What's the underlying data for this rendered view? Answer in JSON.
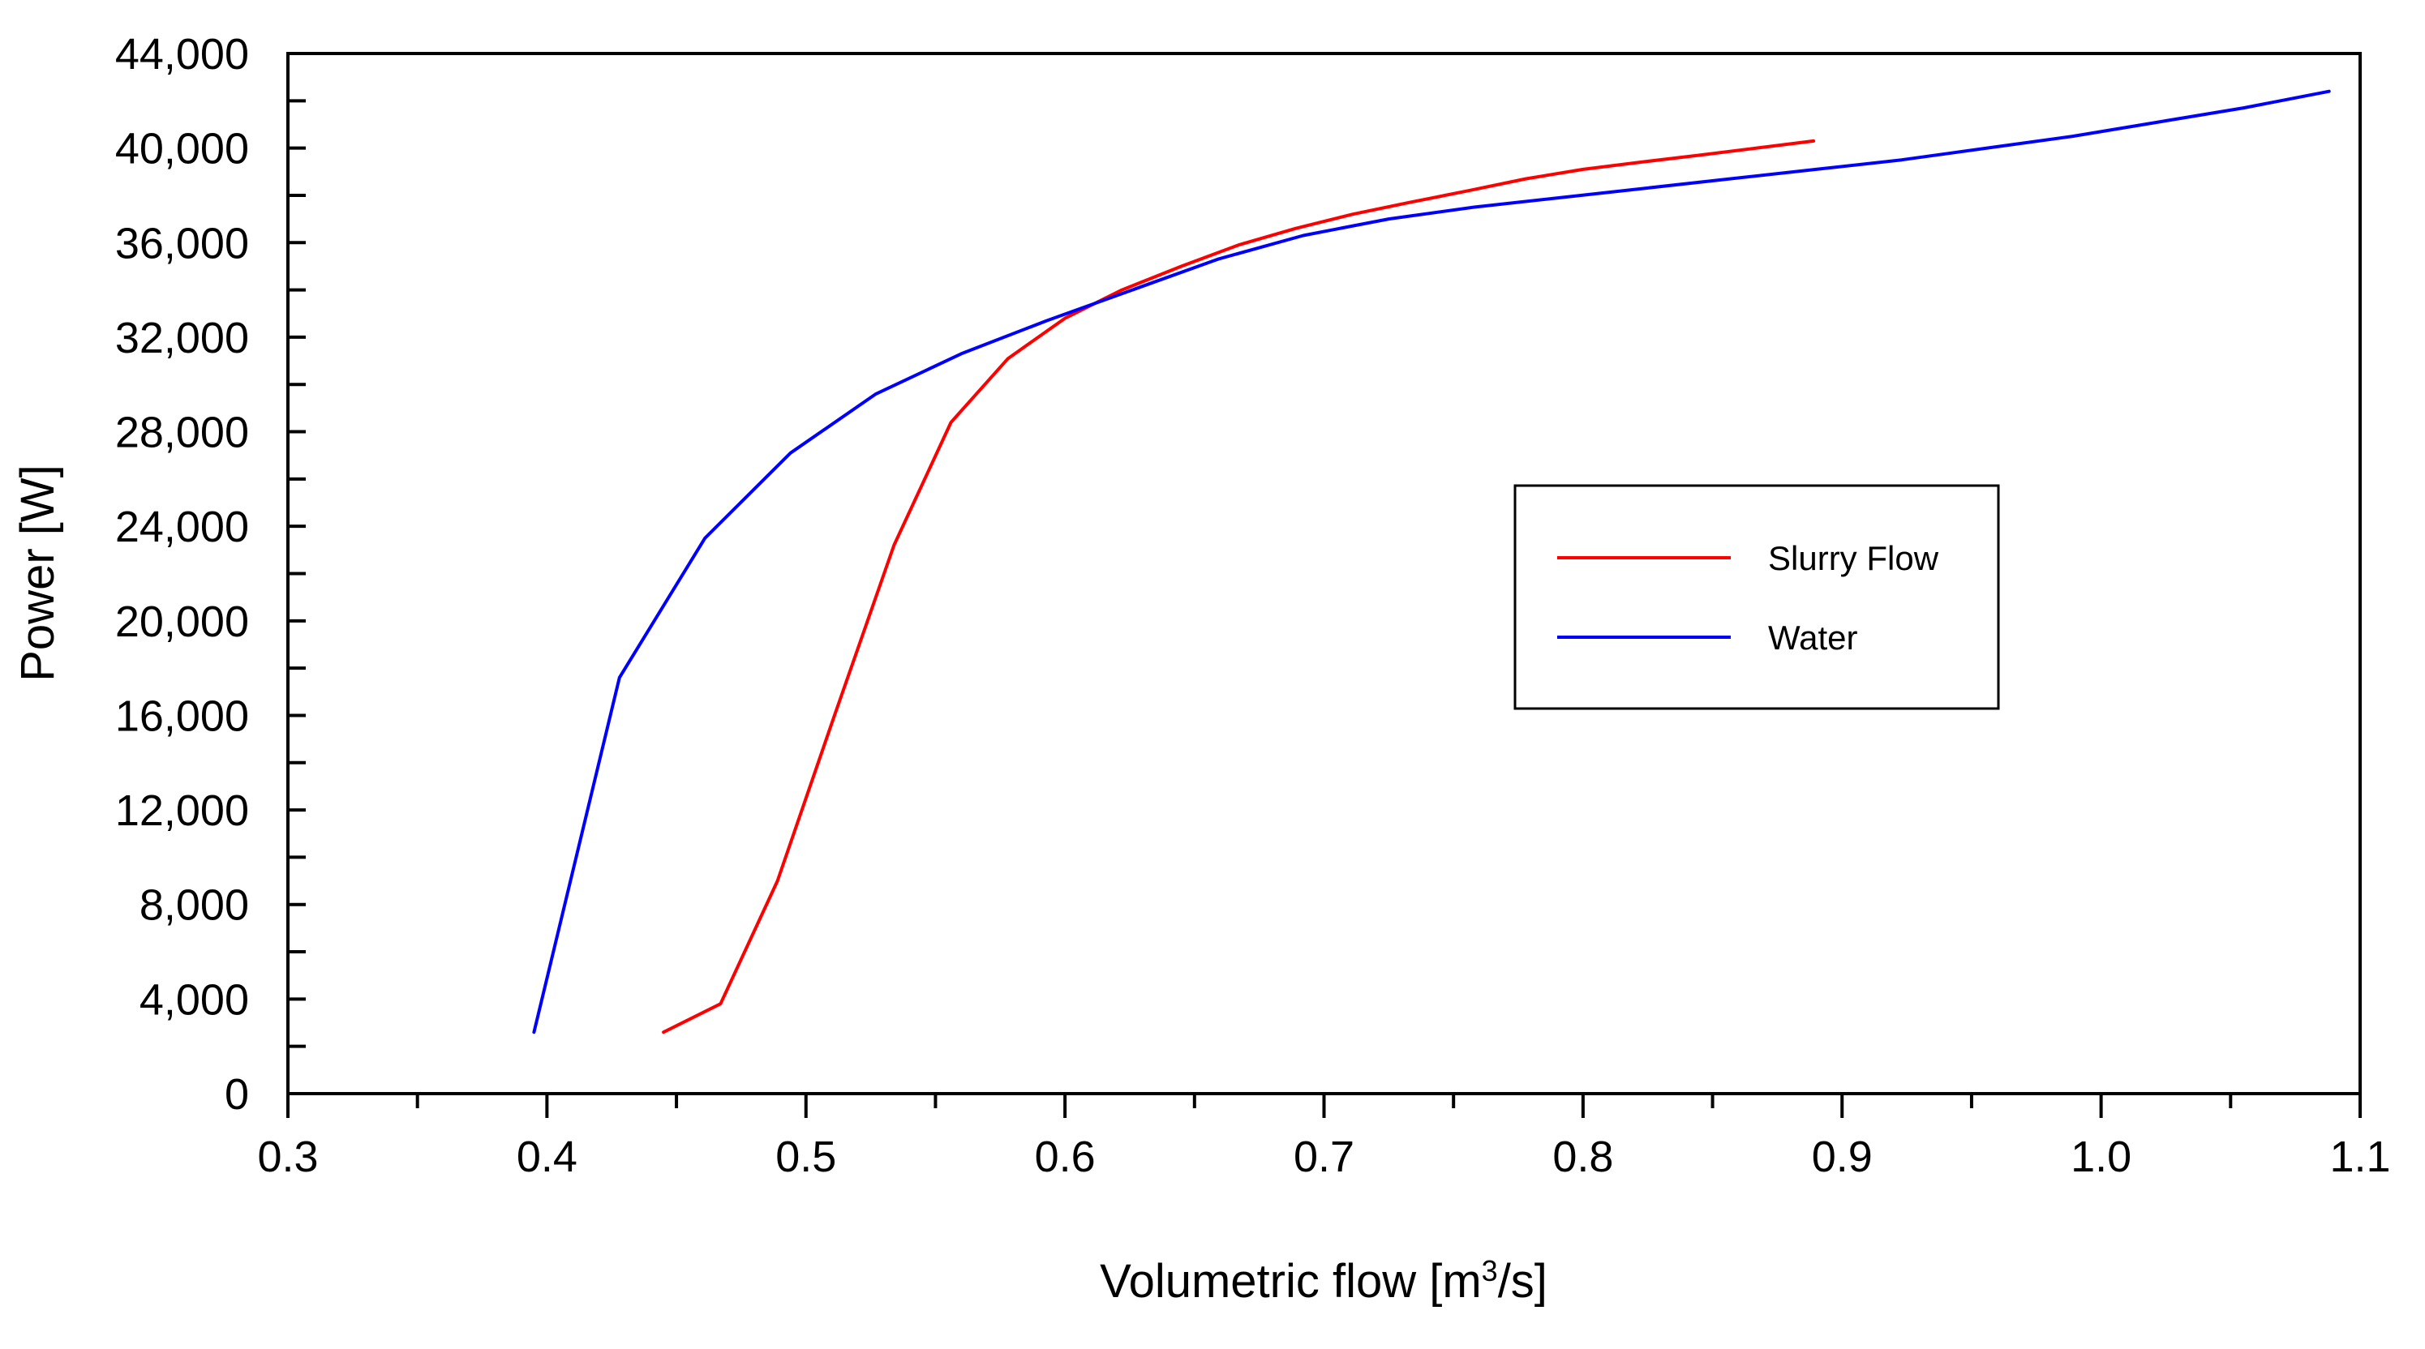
{
  "chart_data": {
    "type": "line",
    "title": "",
    "xlabel": "Volumetric flow [m³/s]",
    "xlabel_parts": {
      "pre": "Volumetric flow [m",
      "sup": "3",
      "post": "/s]"
    },
    "ylabel": "Power [W]",
    "xlim": [
      0.3,
      1.1
    ],
    "ylim": [
      0,
      44000
    ],
    "x_ticks": [
      0.3,
      0.4,
      0.5,
      0.6,
      0.7,
      0.8,
      0.9,
      1.0,
      1.1
    ],
    "x_tick_labels": [
      "0.3",
      "0.4",
      "0.5",
      "0.6",
      "0.7",
      "0.8",
      "0.9",
      "1.0",
      "1.1"
    ],
    "y_ticks": [
      0,
      4000,
      8000,
      12000,
      16000,
      20000,
      24000,
      28000,
      32000,
      36000,
      40000,
      44000
    ],
    "y_tick_labels": [
      "0",
      "4,000",
      "8,000",
      "12,000",
      "16,000",
      "20,000",
      "24,000",
      "28,000",
      "32,000",
      "36,000",
      "40,000",
      "44,000"
    ],
    "x_minor_step": 0.05,
    "y_minor_step": 2000,
    "grid": false,
    "legend_position": "center-right",
    "series": [
      {
        "name": "Slurry Flow",
        "color": "#ff0000",
        "points": [
          [
            0.445,
            2600
          ],
          [
            0.467,
            3800
          ],
          [
            0.489,
            9000
          ],
          [
            0.511,
            16000
          ],
          [
            0.534,
            23200
          ],
          [
            0.556,
            28400
          ],
          [
            0.578,
            31100
          ],
          [
            0.6,
            32800
          ],
          [
            0.622,
            34000
          ],
          [
            0.645,
            35000
          ],
          [
            0.667,
            35900
          ],
          [
            0.689,
            36600
          ],
          [
            0.711,
            37200
          ],
          [
            0.733,
            37700
          ],
          [
            0.756,
            38200
          ],
          [
            0.778,
            38700
          ],
          [
            0.8,
            39100
          ],
          [
            0.822,
            39400
          ],
          [
            0.845,
            39700
          ],
          [
            0.867,
            40000
          ],
          [
            0.889,
            40300
          ]
        ]
      },
      {
        "name": "Water",
        "color": "#0000ff",
        "points": [
          [
            0.395,
            2600
          ],
          [
            0.428,
            17600
          ],
          [
            0.461,
            23500
          ],
          [
            0.494,
            27100
          ],
          [
            0.527,
            29600
          ],
          [
            0.56,
            31300
          ],
          [
            0.593,
            32700
          ],
          [
            0.626,
            34000
          ],
          [
            0.659,
            35300
          ],
          [
            0.692,
            36300
          ],
          [
            0.725,
            37000
          ],
          [
            0.758,
            37500
          ],
          [
            0.791,
            37900
          ],
          [
            0.824,
            38300
          ],
          [
            0.857,
            38700
          ],
          [
            0.89,
            39100
          ],
          [
            0.923,
            39500
          ],
          [
            0.956,
            40000
          ],
          [
            0.989,
            40500
          ],
          [
            1.022,
            41100
          ],
          [
            1.055,
            41700
          ],
          [
            1.088,
            42400
          ]
        ]
      }
    ]
  }
}
